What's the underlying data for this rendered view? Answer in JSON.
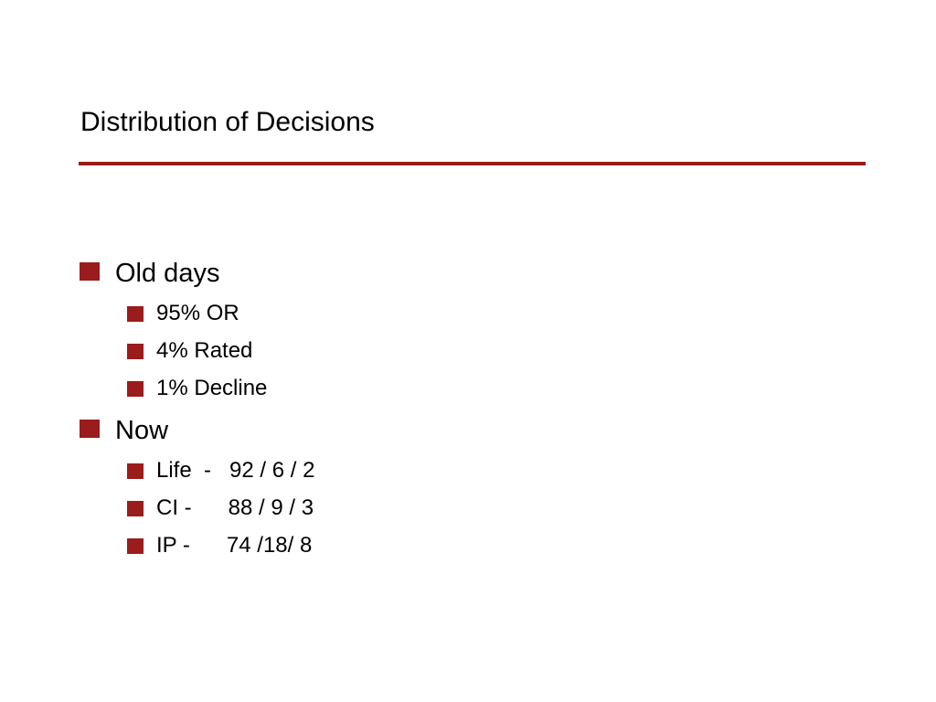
{
  "slide": {
    "title": "Distribution of Decisions",
    "accent_color": "#9b1c1c",
    "sections": [
      {
        "label": "Old days",
        "items": [
          "95% OR",
          "4% Rated",
          "1% Decline"
        ]
      },
      {
        "label": "Now",
        "items": [
          "Life  -   92 / 6 / 2",
          "CI -      88 / 9 / 3",
          "IP -      74 /18/ 8"
        ]
      }
    ]
  }
}
